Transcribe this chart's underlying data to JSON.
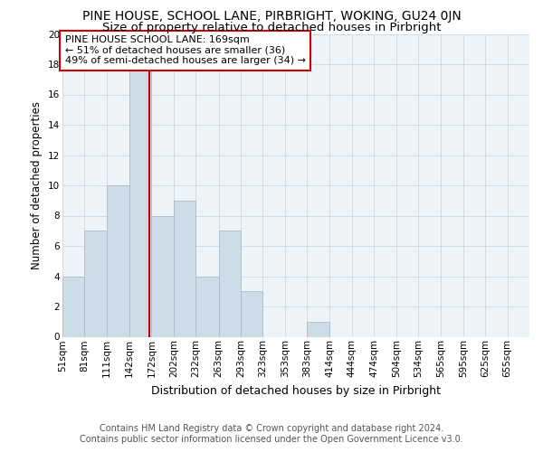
{
  "title": "PINE HOUSE, SCHOOL LANE, PIRBRIGHT, WOKING, GU24 0JN",
  "subtitle": "Size of property relative to detached houses in Pirbright",
  "xlabel": "Distribution of detached houses by size in Pirbright",
  "ylabel": "Number of detached properties",
  "footnote1": "Contains HM Land Registry data © Crown copyright and database right 2024.",
  "footnote2": "Contains public sector information licensed under the Open Government Licence v3.0.",
  "bin_labels": [
    "51sqm",
    "81sqm",
    "111sqm",
    "142sqm",
    "172sqm",
    "202sqm",
    "232sqm",
    "263sqm",
    "293sqm",
    "323sqm",
    "353sqm",
    "383sqm",
    "414sqm",
    "444sqm",
    "474sqm",
    "504sqm",
    "534sqm",
    "565sqm",
    "595sqm",
    "625sqm",
    "655sqm"
  ],
  "bin_edges": [
    51,
    81,
    111,
    142,
    172,
    202,
    232,
    263,
    293,
    323,
    353,
    383,
    414,
    444,
    474,
    504,
    534,
    565,
    595,
    625,
    655,
    685
  ],
  "bar_heights": [
    4,
    7,
    10,
    18,
    8,
    9,
    4,
    7,
    3,
    0,
    0,
    1,
    0,
    0,
    0,
    0,
    0,
    0,
    0,
    0,
    0
  ],
  "bar_color": "#ccdde8",
  "bar_edge_color": "#aabbcc",
  "grid_color": "#d0dce8",
  "bg_color": "#eef3f8",
  "annotation_text": "PINE HOUSE SCHOOL LANE: 169sqm\n← 51% of detached houses are smaller (36)\n49% of semi-detached houses are larger (34) →",
  "annotation_box_facecolor": "#ffffff",
  "annotation_box_edgecolor": "#cc0000",
  "vline_x": 169,
  "vline_color": "#cc0000",
  "ylim": [
    0,
    20
  ],
  "yticks": [
    0,
    2,
    4,
    6,
    8,
    10,
    12,
    14,
    16,
    18,
    20
  ],
  "title_fontsize": 10,
  "subtitle_fontsize": 9.5,
  "annotation_fontsize": 8,
  "xlabel_fontsize": 9,
  "ylabel_fontsize": 8.5,
  "tick_fontsize": 7.5,
  "footnote_fontsize": 7
}
